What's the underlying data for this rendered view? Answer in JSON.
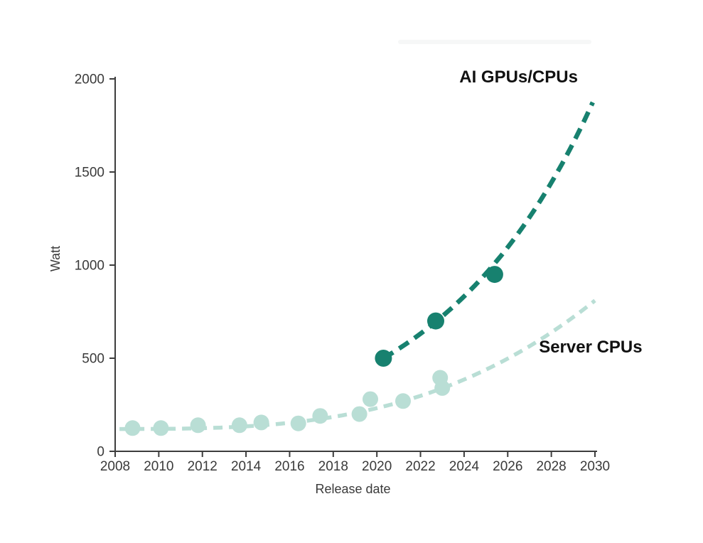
{
  "colors": {
    "ai_series": "#17816F",
    "server_series": "#B9DED5",
    "axis": "#3d3d3d",
    "tick_text": "#3a3a3a",
    "label_text": "#111111",
    "artifact": "#eef1f1"
  },
  "chart_data": {
    "type": "scatter",
    "title": "",
    "xlabel": "Release date",
    "ylabel": "Watt",
    "xlim": [
      2008,
      2030
    ],
    "ylim": [
      0,
      2000
    ],
    "x_ticks": [
      2008,
      2010,
      2012,
      2014,
      2016,
      2018,
      2020,
      2022,
      2024,
      2026,
      2028,
      2030
    ],
    "y_ticks": [
      0,
      500,
      1000,
      1500,
      2000
    ],
    "grid": false,
    "legend_position": "inline-annotations",
    "series": [
      {
        "name": "Server CPUs",
        "color": "#B9DED5",
        "marker_radius": 11,
        "points": [
          {
            "x": 2008.8,
            "y": 125
          },
          {
            "x": 2010.1,
            "y": 125
          },
          {
            "x": 2011.8,
            "y": 140
          },
          {
            "x": 2013.7,
            "y": 140
          },
          {
            "x": 2014.7,
            "y": 155
          },
          {
            "x": 2016.4,
            "y": 150
          },
          {
            "x": 2017.4,
            "y": 190
          },
          {
            "x": 2019.2,
            "y": 200
          },
          {
            "x": 2019.7,
            "y": 280
          },
          {
            "x": 2021.2,
            "y": 270
          },
          {
            "x": 2022.9,
            "y": 395
          },
          {
            "x": 2023.0,
            "y": 340
          }
        ],
        "trend": {
          "style": "dashed",
          "shape": "cubic",
          "base": 120,
          "x_start": 2008.2,
          "x_end": 2030,
          "y_end": 810,
          "dash": "13 9",
          "width": 5.5
        },
        "label": {
          "text": "Server CPUs",
          "x": 2029.8,
          "y": 530
        }
      },
      {
        "name": "AI GPUs/CPUs",
        "color": "#17816F",
        "marker_radius": 12,
        "points": [
          {
            "x": 2020.3,
            "y": 500
          },
          {
            "x": 2022.7,
            "y": 700
          },
          {
            "x": 2025.4,
            "y": 950
          }
        ],
        "trend": {
          "style": "dashed",
          "shape": "exponential",
          "x_start": 2020.3,
          "x_end": 2030,
          "y_end": 1900,
          "dash": "16 10",
          "width": 6.5
        },
        "label": {
          "text": "AI GPUs/CPUs",
          "x": 2026.5,
          "y": 1980
        }
      }
    ]
  }
}
